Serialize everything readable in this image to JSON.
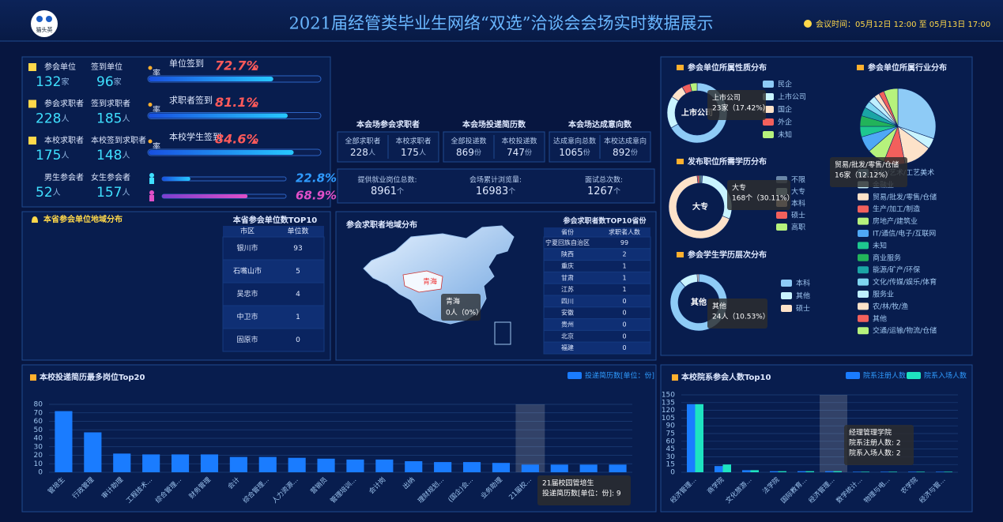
{
  "header": {
    "logo": "猫头英",
    "title": "2021届经管类毕业生网络“双选”洽谈会会场实时数据展示",
    "meeting_time": "会议时间：05月12日 12:00 至 05月13日 17:00"
  },
  "signin": {
    "rows": [
      {
        "a": {
          "label": "参会单位",
          "value": 132,
          "unit": "家"
        },
        "b": {
          "label": "签到单位",
          "value": 96,
          "unit": "家"
        },
        "rate": {
          "label": "单位签到",
          "suffix": "率",
          "value": 72.7,
          "text": "72.7%"
        }
      },
      {
        "a": {
          "label": "参会求职者",
          "value": 228,
          "unit": "人"
        },
        "b": {
          "label": "签到求职者",
          "value": 185,
          "unit": "人"
        },
        "rate": {
          "label": "求职者签到",
          "suffix": "率",
          "value": 81.1,
          "text": "81.1%"
        }
      },
      {
        "a": {
          "label": "本校求职者",
          "value": 175,
          "unit": "人"
        },
        "b": {
          "label": "本校签到求职者",
          "value": 148,
          "unit": "人"
        },
        "rate": {
          "label": "本校学生签到",
          "suffix": "率",
          "value": 84.6,
          "text": "84.6%"
        }
      }
    ],
    "gender": {
      "male": {
        "label": "男生参会者",
        "value": 52,
        "unit": "人",
        "rate": 22.8,
        "rate_text": "22.8%"
      },
      "female": {
        "label": "女生参会者",
        "value": 157,
        "unit": "人",
        "rate": 68.9,
        "rate_text": "68.9%"
      }
    }
  },
  "venue_stats": {
    "groups": [
      {
        "title": "本会场参会求职者",
        "items": [
          {
            "label": "全部求职者",
            "value": 228,
            "unit": "人"
          },
          {
            "label": "本校求职者",
            "value": 175,
            "unit": "人"
          }
        ]
      },
      {
        "title": "本会场投递简历数",
        "items": [
          {
            "label": "全部投递数",
            "value": 869,
            "unit": "份"
          },
          {
            "label": "本校投递数",
            "value": 747,
            "unit": "份"
          }
        ]
      },
      {
        "title": "本会场达成意向数",
        "items": [
          {
            "label": "达成意向总数",
            "value": 1065,
            "unit": "份"
          },
          {
            "label": "本校达成意向",
            "value": 892,
            "unit": "份"
          }
        ]
      }
    ],
    "totals": [
      {
        "label": "提供就业岗位总数:",
        "value": 8961,
        "unit": "个"
      },
      {
        "label": "会场累计浏览量:",
        "value": 16983,
        "unit": "个"
      },
      {
        "label": "面试总次数:",
        "value": 1267,
        "unit": "个"
      }
    ]
  },
  "province_units": {
    "title": "本省参会单位地域分布",
    "table_title": "本省参会单位数TOP10",
    "columns": [
      "市区",
      "单位数"
    ],
    "rows": [
      [
        "银川市",
        93
      ],
      [
        "石嘴山市",
        5
      ],
      [
        "吴忠市",
        4
      ],
      [
        "中卫市",
        1
      ],
      [
        "固原市",
        0
      ]
    ]
  },
  "applicant_regions": {
    "title": "参会求职者地域分布",
    "map_label": "青海",
    "tooltip": {
      "title": "青海",
      "text": "0人（0%）"
    },
    "table_title": "参会求职者数TOP10省份",
    "columns": [
      "省份",
      "求职者人数"
    ],
    "rows": [
      [
        "宁夏回族自治区",
        99
      ],
      [
        "陕西",
        2
      ],
      [
        "重庆",
        1
      ],
      [
        "甘肃",
        1
      ],
      [
        "江苏",
        1
      ],
      [
        "四川",
        0
      ],
      [
        "安徽",
        0
      ],
      [
        "贵州",
        0
      ],
      [
        "北京",
        0
      ],
      [
        "福建",
        0
      ]
    ]
  },
  "chart_data": [
    {
      "type": "donut",
      "title": "参会单位所属性质分布",
      "categories": [
        "民企",
        "上市公司",
        "国企",
        "外企",
        "未知"
      ],
      "values": [
        88,
        23,
        10,
        6,
        5
      ],
      "colors": [
        "#8ecbf6",
        "#c9f4ff",
        "#fde2c9",
        "#f2605c",
        "#b6f27c"
      ],
      "center_label": "上市公司",
      "tooltip": {
        "title": "上市公司",
        "text": "23家（17.42%）"
      }
    },
    {
      "type": "donut",
      "title": "发布职位所需学历分布",
      "categories": [
        "不限",
        "大专",
        "本科",
        "硕士",
        "高职"
      ],
      "values": [
        6,
        168,
        375,
        6,
        3
      ],
      "colors": [
        "#6a87a8",
        "#c9f4ff",
        "#fde2c9",
        "#f2605c",
        "#b6f27c"
      ],
      "center_label": "大专",
      "tooltip": {
        "title": "大专",
        "text": "168个（30.11%）"
      }
    },
    {
      "type": "donut",
      "title": "参会学生学历层次分布",
      "categories": [
        "本科",
        "其他",
        "硕士"
      ],
      "values": [
        202,
        24,
        2
      ],
      "colors": [
        "#8ecbf6",
        "#c9f4ff",
        "#fde2c9"
      ],
      "center_label": "其他",
      "tooltip": {
        "title": "其他",
        "text": "24人（10.53%）"
      }
    },
    {
      "type": "pie",
      "title": "参会单位所属行业分布",
      "categories": [
        "文化/艺术/工艺美术",
        "金融业",
        "贸易/批发/零售/仓储",
        "生产/加工/制造",
        "房地产/建筑业",
        "IT/通信/电子/互联网",
        "未知",
        "商业服务",
        "能源/矿产/环保",
        "文化/传媒/娱乐/体育",
        "服务业",
        "农/林/牧/渔",
        "其他",
        "交通/运输/物流/仓储"
      ],
      "values": [
        40,
        6,
        16,
        12,
        10,
        9,
        6,
        6,
        5,
        4,
        4,
        3,
        3,
        8
      ],
      "colors": [
        "#8ecbf6",
        "#c9f4ff",
        "#fde2c9",
        "#f2605c",
        "#b6f27c",
        "#4fa8f5",
        "#1ec78f",
        "#22b35a",
        "#1aa5a5",
        "#7fd6f0",
        "#bfefff",
        "#fde2c9",
        "#f2605c",
        "#b6f27c"
      ],
      "tooltip": {
        "title": "贸易/批发/零售/仓储",
        "text": "16家（12.12%）"
      }
    },
    {
      "type": "bar",
      "title": "本校投递简历最多岗位Top20",
      "categories": [
        "管培生",
        "行政管理",
        "审计助理",
        "工程技术...",
        "综合管理...",
        "财务管理",
        "会计",
        "综合管理...",
        "人力资源...",
        "营销员",
        "管理培训...",
        "会计岗",
        "出纳",
        "理财规划...",
        "(国企)会...",
        "业务助理",
        "21届校...",
        null,
        null,
        null
      ],
      "series": [
        {
          "name": "投递简历数[单位：份]",
          "color": "#1a7cff",
          "values": [
            72,
            47,
            22,
            21,
            21,
            21,
            18,
            18,
            17,
            16,
            15,
            15,
            13,
            12,
            12,
            11,
            9,
            9,
            9,
            9
          ]
        }
      ],
      "ylim": [
        0,
        80
      ],
      "yticks": [
        0,
        10,
        20,
        30,
        40,
        50,
        60,
        70,
        80
      ],
      "grid": true,
      "hover_index": 16,
      "tooltip": {
        "title": "21届校园管培生",
        "lines": [
          "投递简历数[单位：份]: 9"
        ]
      }
    },
    {
      "type": "bar",
      "title": "本校院系参会人数Top10",
      "categories": [
        "经济管理...",
        "商学院",
        "文化旅游...",
        "法学院",
        "国际教育...",
        "经济管理...",
        "数学统计...",
        "物理与电...",
        "农学院",
        "经济与管..."
      ],
      "series": [
        {
          "name": "院系注册人数",
          "color": "#1a7cff",
          "values": [
            132,
            12,
            4,
            2,
            2,
            2,
            1,
            1,
            1,
            1
          ]
        },
        {
          "name": "院系入场人数",
          "color": "#1ee3c0",
          "values": [
            132,
            15,
            4,
            2,
            2,
            2,
            1,
            1,
            1,
            1
          ]
        }
      ],
      "ylim": [
        0,
        150
      ],
      "yticks": [
        0,
        15,
        30,
        45,
        60,
        75,
        90,
        105,
        120,
        135,
        150
      ],
      "grid": true,
      "hover_index": 5,
      "tooltip": {
        "title": "经理管理学院",
        "lines": [
          "院系注册人数: 2",
          "院系入场人数: 2"
        ]
      }
    }
  ]
}
